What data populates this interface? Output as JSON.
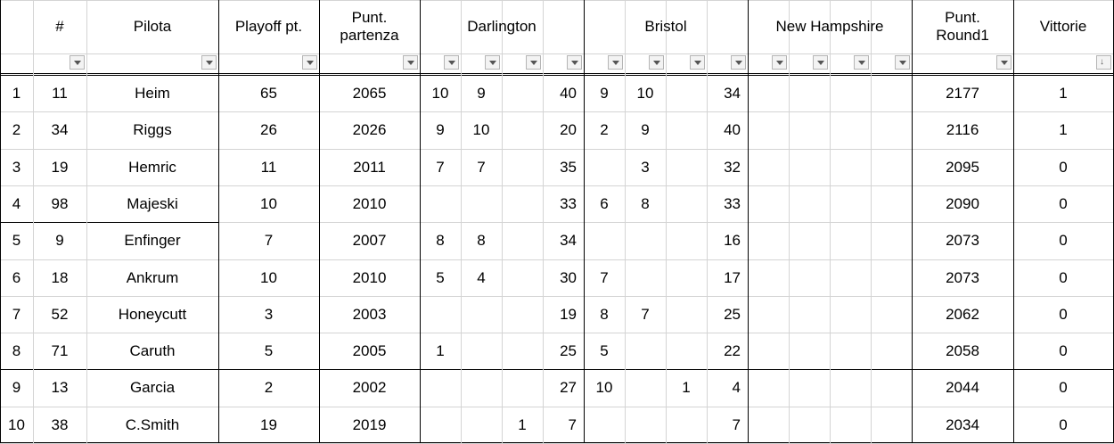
{
  "columns": {
    "rank": "",
    "num": "#",
    "driver": "Pilota",
    "playoff": "Playoff pt.",
    "start_line1": "Punt.",
    "start_line2": "partenza",
    "race1": "Darlington",
    "race2": "Bristol",
    "race3": "New Hampshire",
    "round_line1": "Punt.",
    "round_line2": "Round1",
    "wins": "Vittorie"
  },
  "rows": [
    {
      "rank": "1",
      "num": "11",
      "driver": "Heim",
      "playoff": "65",
      "start": "2065",
      "d": [
        "10",
        "9",
        "",
        "40"
      ],
      "b": [
        "9",
        "10",
        "",
        "34"
      ],
      "nh": [
        "",
        "",
        "",
        ""
      ],
      "round": "2177",
      "wins": "1"
    },
    {
      "rank": "2",
      "num": "34",
      "driver": "Riggs",
      "playoff": "26",
      "start": "2026",
      "d": [
        "9",
        "10",
        "",
        "20"
      ],
      "b": [
        "2",
        "9",
        "",
        "40"
      ],
      "nh": [
        "",
        "",
        "",
        ""
      ],
      "round": "2116",
      "wins": "1"
    },
    {
      "rank": "3",
      "num": "19",
      "driver": "Hemric",
      "playoff": "11",
      "start": "2011",
      "d": [
        "7",
        "7",
        "",
        "35"
      ],
      "b": [
        "",
        "3",
        "",
        "32"
      ],
      "nh": [
        "",
        "",
        "",
        ""
      ],
      "round": "2095",
      "wins": "0"
    },
    {
      "rank": "4",
      "num": "98",
      "driver": "Majeski",
      "playoff": "10",
      "start": "2010",
      "d": [
        "",
        "",
        "",
        "33"
      ],
      "b": [
        "6",
        "8",
        "",
        "33"
      ],
      "nh": [
        "",
        "",
        "",
        ""
      ],
      "round": "2090",
      "wins": "0"
    },
    {
      "rank": "5",
      "num": "9",
      "driver": "Enfinger",
      "playoff": "7",
      "start": "2007",
      "d": [
        "8",
        "8",
        "",
        "34"
      ],
      "b": [
        "",
        "",
        "",
        "16"
      ],
      "nh": [
        "",
        "",
        "",
        ""
      ],
      "round": "2073",
      "wins": "0"
    },
    {
      "rank": "6",
      "num": "18",
      "driver": "Ankrum",
      "playoff": "10",
      "start": "2010",
      "d": [
        "5",
        "4",
        "",
        "30"
      ],
      "b": [
        "7",
        "",
        "",
        "17"
      ],
      "nh": [
        "",
        "",
        "",
        ""
      ],
      "round": "2073",
      "wins": "0"
    },
    {
      "rank": "7",
      "num": "52",
      "driver": "Honeycutt",
      "playoff": "3",
      "start": "2003",
      "d": [
        "",
        "",
        "",
        "19"
      ],
      "b": [
        "8",
        "7",
        "",
        "25"
      ],
      "nh": [
        "",
        "",
        "",
        ""
      ],
      "round": "2062",
      "wins": "0"
    },
    {
      "rank": "8",
      "num": "71",
      "driver": "Caruth",
      "playoff": "5",
      "start": "2005",
      "d": [
        "1",
        "",
        "",
        "25"
      ],
      "b": [
        "5",
        "",
        "",
        "22"
      ],
      "nh": [
        "",
        "",
        "",
        ""
      ],
      "round": "2058",
      "wins": "0"
    },
    {
      "rank": "9",
      "num": "13",
      "driver": "Garcia",
      "playoff": "2",
      "start": "2002",
      "d": [
        "",
        "",
        "",
        "27"
      ],
      "b": [
        "10",
        "",
        "1",
        "4"
      ],
      "nh": [
        "",
        "",
        "",
        ""
      ],
      "round": "2044",
      "wins": "0"
    },
    {
      "rank": "10",
      "num": "38",
      "driver": "C.Smith",
      "playoff": "19",
      "start": "2019",
      "d": [
        "",
        "",
        "1",
        "7"
      ],
      "b": [
        "",
        "",
        "",
        "7"
      ],
      "nh": [
        "",
        "",
        "",
        ""
      ],
      "round": "2034",
      "wins": "0"
    }
  ],
  "filter": {
    "sorted_column": "wins",
    "dropdown_icon": "chevron-down-icon",
    "sorted_icon": "sort-desc-filter-icon"
  }
}
